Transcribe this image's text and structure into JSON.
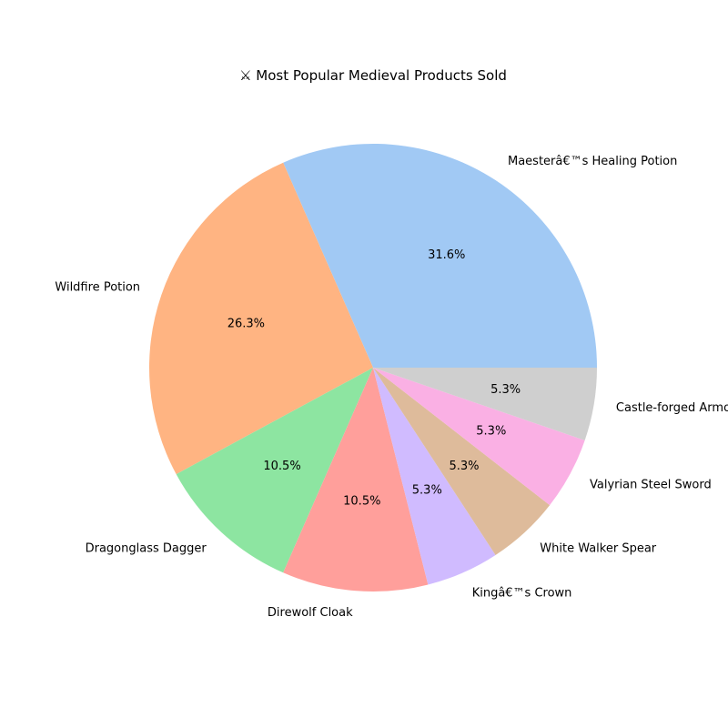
{
  "chart_data": {
    "type": "pie",
    "title": "⚔ Most Popular Medieval Products Sold",
    "start_angle_deg": 0,
    "direction": "counterclockwise",
    "slices": [
      {
        "label": "Maesterâ€™s Healing Potion",
        "value": 6,
        "pct_label": "31.6%",
        "color": "#a1c9f4"
      },
      {
        "label": "Wildfire Potion",
        "value": 5,
        "pct_label": "26.3%",
        "color": "#ffb482"
      },
      {
        "label": "Dragonglass Dagger",
        "value": 2,
        "pct_label": "10.5%",
        "color": "#8de5a1"
      },
      {
        "label": "Direwolf Cloak",
        "value": 2,
        "pct_label": "10.5%",
        "color": "#ff9f9b"
      },
      {
        "label": "Kingâ€™s Crown",
        "value": 1,
        "pct_label": "5.3%",
        "color": "#d0bbff"
      },
      {
        "label": "White Walker Spear",
        "value": 1,
        "pct_label": "5.3%",
        "color": "#debb9b"
      },
      {
        "label": "Valyrian Steel Sword",
        "value": 1,
        "pct_label": "5.3%",
        "color": "#fab0e4"
      },
      {
        "label": "Castle-forged Armor",
        "value": 1,
        "pct_label": "5.3%",
        "color": "#cfcfcf"
      }
    ]
  }
}
